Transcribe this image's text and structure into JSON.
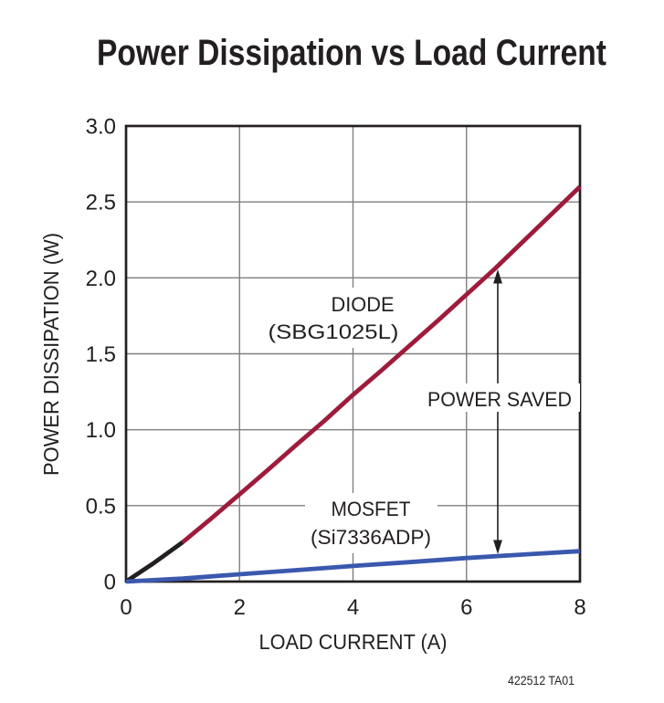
{
  "title": "Power Dissipation vs Load Current",
  "footnote": "422512 TA01",
  "colors": {
    "frame": "#231F20",
    "grid": "#7F7F7F",
    "diode_start": "#231F20",
    "diode": "#9E1B3B",
    "mosfet": "#3A58AE",
    "text": "#231F20",
    "background": "#FFFFFF"
  },
  "chart_data": {
    "type": "line",
    "title": "Power Dissipation vs Load Current",
    "xlabel": "LOAD CURRENT (A)",
    "ylabel": "POWER DISSIPATION (W)",
    "xlim": [
      0,
      8
    ],
    "ylim": [
      0,
      3
    ],
    "grid": true,
    "xtick_labels": [
      "0",
      "2",
      "4",
      "6",
      "8"
    ],
    "ytick_labels": [
      "0",
      "0.5",
      "1.0",
      "1.5",
      "2.0",
      "2.5",
      "3.0"
    ],
    "series": [
      {
        "id": "diode",
        "name": "DIODE (SBG1025L)",
        "label_lines": [
          "DIODE",
          "(SBG1025L)"
        ],
        "segments": [
          {
            "color": "#231F20",
            "points": [
              [
                0,
                0
              ],
              [
                0.5,
                0.125
              ],
              [
                1,
                0.26
              ]
            ]
          },
          {
            "color": "#9E1B3B",
            "points": [
              [
                1,
                0.26
              ],
              [
                1.5,
                0.415
              ],
              [
                2,
                0.575
              ],
              [
                2.5,
                0.735
              ],
              [
                3,
                0.9
              ],
              [
                3.5,
                1.06
              ],
              [
                4,
                1.23
              ],
              [
                4.5,
                1.39
              ],
              [
                5,
                1.555
              ],
              [
                5.5,
                1.72
              ],
              [
                6,
                1.89
              ],
              [
                6.5,
                2.06
              ],
              [
                7,
                2.24
              ],
              [
                7.5,
                2.42
              ],
              [
                8,
                2.6
              ]
            ]
          }
        ]
      },
      {
        "id": "mosfet",
        "name": "MOSFET (Si7336ADP)",
        "label_lines": [
          "MOSFET",
          "(Si7336ADP)"
        ],
        "segments": [
          {
            "color": "#3A58AE",
            "points": [
              [
                0,
                0
              ],
              [
                1,
                0.02
              ],
              [
                2,
                0.048
              ],
              [
                3,
                0.075
              ],
              [
                4,
                0.103
              ],
              [
                5,
                0.128
              ],
              [
                6,
                0.155
              ],
              [
                7,
                0.178
              ],
              [
                8,
                0.2
              ]
            ]
          }
        ]
      }
    ],
    "annotations": [
      {
        "id": "power-saved",
        "label": "POWER SAVED",
        "x": 6.55,
        "from_w": 0.19,
        "to_w": 2.05,
        "style": "double-headed-vertical-arrow"
      }
    ]
  }
}
